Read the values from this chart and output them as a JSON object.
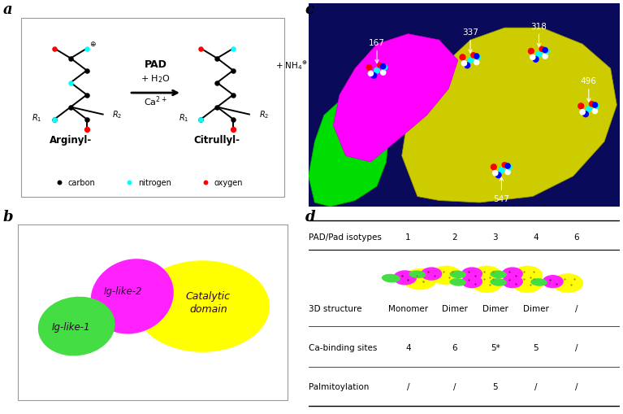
{
  "fig_bg": "#ffffff",
  "panel_label_fontsize": 13,
  "table_header": "PAD/Pad isotypes",
  "table_cols": [
    "1",
    "2",
    "3",
    "4",
    "6"
  ],
  "table_row1_label": "3D structure",
  "table_row1_vals": [
    "Monomer",
    "Dimer",
    "Dimer",
    "Dimer",
    "/"
  ],
  "table_row2_label": "Ca-binding sites",
  "table_row2_vals": [
    "4",
    "6",
    "5*",
    "5",
    "/"
  ],
  "table_row3_label": "Palmitoylation",
  "table_row3_vals": [
    "/",
    "/",
    "5",
    "/",
    "/"
  ],
  "protein_bg": "#0a0a5a"
}
